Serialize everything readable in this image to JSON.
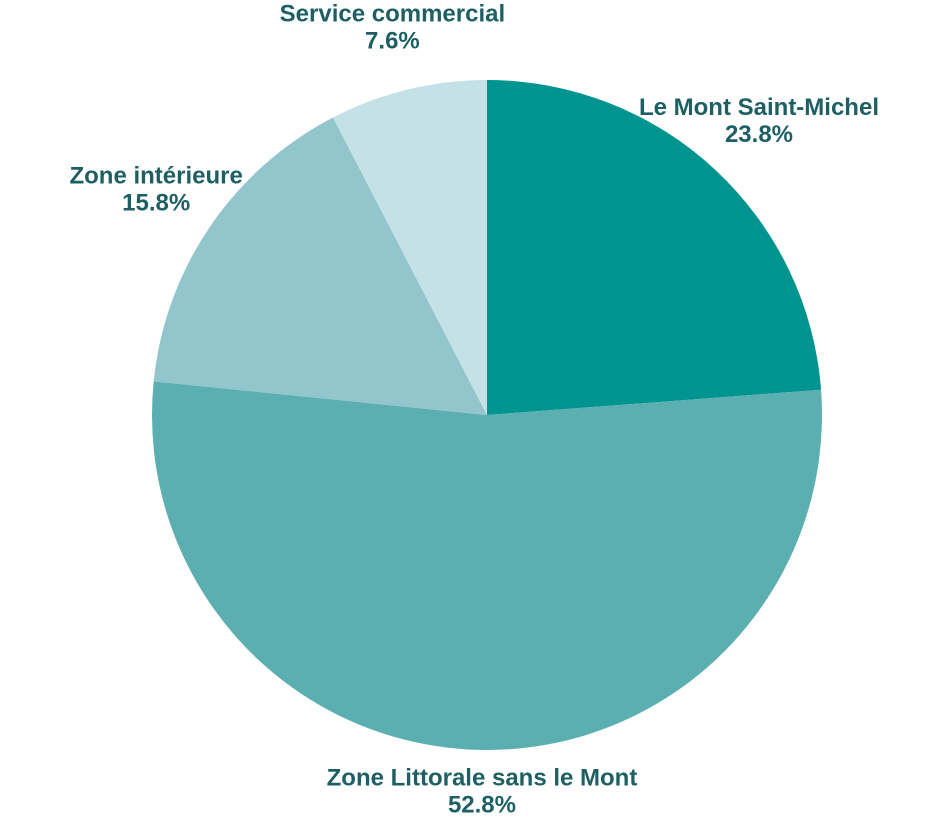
{
  "chart_data": {
    "type": "pie",
    "categories": [
      "Le Mont Saint-Michel",
      "Zone Littorale sans le Mont",
      "Zone intérieure",
      "Service commercial"
    ],
    "values": [
      23.8,
      52.8,
      15.8,
      7.6
    ],
    "value_labels": [
      "23.8%",
      "52.8%",
      "15.8%",
      "7.6%"
    ],
    "colors": [
      "#009490",
      "#5bafb0",
      "#92c6cc",
      "#c3e1e7"
    ]
  }
}
